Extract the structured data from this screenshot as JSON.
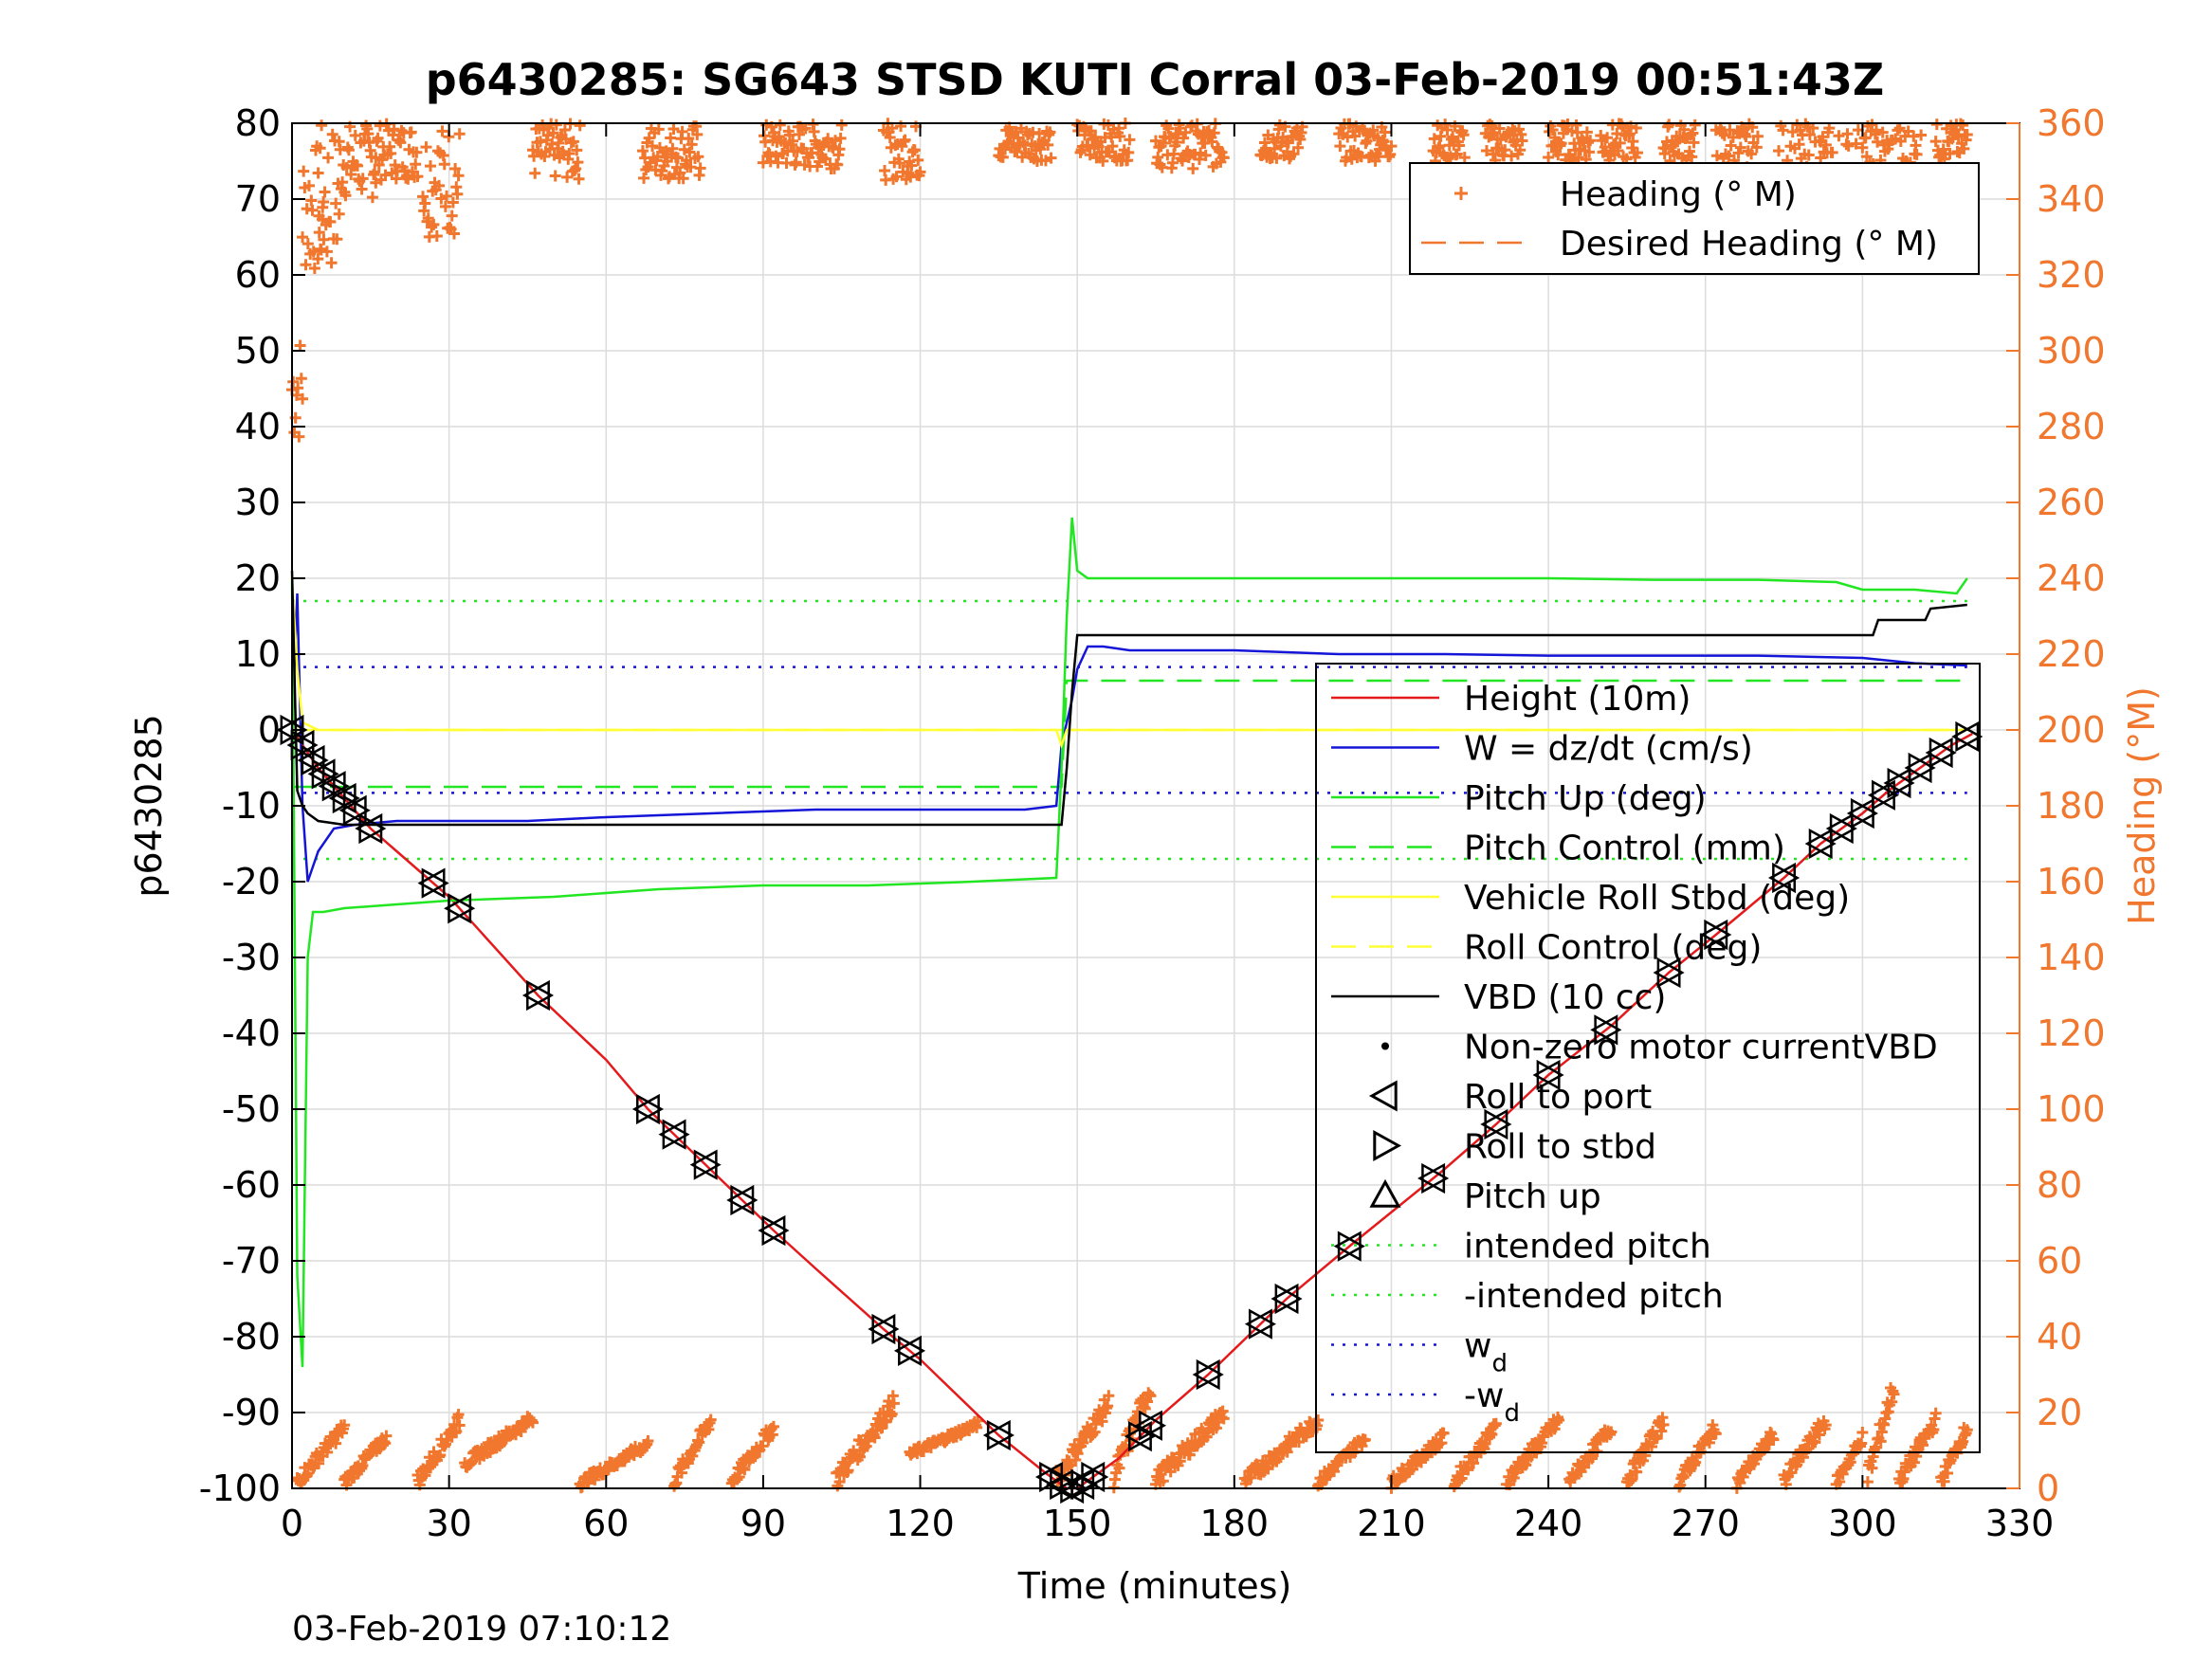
{
  "chart_data": {
    "type": "line",
    "title": "p6430285: SG643 STSD KUTI Corral 03-Feb-2019 00:51:43Z",
    "xlabel": "Time (minutes)",
    "ylabel": "p6430285",
    "ylabel_right": "Heading (°M)",
    "timestamp": "03-Feb-2019 07:10:12",
    "xlim": [
      0,
      330
    ],
    "ylim": [
      -100,
      80
    ],
    "ylim_right": [
      0,
      360
    ],
    "x_ticks": [
      "0",
      "30",
      "60",
      "90",
      "120",
      "150",
      "180",
      "210",
      "240",
      "270",
      "300",
      "330"
    ],
    "y_ticks": [
      "80",
      "70",
      "60",
      "50",
      "40",
      "30",
      "20",
      "10",
      "0",
      "-10",
      "-20",
      "-30",
      "-40",
      "-50",
      "-60",
      "-70",
      "-80",
      "-90",
      "-100"
    ],
    "y_ticks_right": [
      "360",
      "340",
      "320",
      "300",
      "280",
      "260",
      "240",
      "220",
      "200",
      "180",
      "160",
      "140",
      "120",
      "100",
      "80",
      "60",
      "40",
      "20",
      "0"
    ],
    "grid": true,
    "legend_heading": {
      "placement": "top-right",
      "entries": [
        "Heading (° M)",
        "Desired Heading (° M)"
      ]
    },
    "legend_main": {
      "placement": "right",
      "entries": [
        {
          "label": "Height (10m)",
          "style": "solid",
          "color": "#e41a1c",
          "marker": ""
        },
        {
          "label": "W = dz/dt (cm/s)",
          "style": "solid",
          "color": "#1515d8",
          "marker": ""
        },
        {
          "label": "Pitch Up (deg)",
          "style": "solid",
          "color": "#22e622",
          "marker": ""
        },
        {
          "label": "Pitch Control (mm)",
          "style": "dashed",
          "color": "#22e622",
          "marker": ""
        },
        {
          "label": "Vehicle Roll Stbd (deg)",
          "style": "solid",
          "color": "#ffff33",
          "marker": ""
        },
        {
          "label": "Roll Control (deg)",
          "style": "dashed",
          "color": "#ffff33",
          "marker": ""
        },
        {
          "label": "VBD (10 cc)",
          "style": "solid",
          "color": "#000000",
          "marker": ""
        },
        {
          "label": "Non-zero motor currentVBD",
          "style": "none",
          "color": "#000000",
          "marker": "dot"
        },
        {
          "label": "Roll to port",
          "style": "none",
          "color": "#000000",
          "marker": "tri-left"
        },
        {
          "label": "Roll to stbd",
          "style": "none",
          "color": "#000000",
          "marker": "tri-right"
        },
        {
          "label": "Pitch up",
          "style": "none",
          "color": "#000000",
          "marker": "tri-up"
        },
        {
          "label": "intended pitch",
          "style": "dotted",
          "color": "#22e622",
          "marker": ""
        },
        {
          "label": "-intended pitch",
          "style": "dotted",
          "color": "#22e622",
          "marker": ""
        },
        {
          "label": "w",
          "sub": "d",
          "style": "dotted",
          "color": "#1515d8",
          "marker": ""
        },
        {
          "label": "-w",
          "sub": "d",
          "style": "dotted",
          "color": "#1515d8",
          "marker": ""
        }
      ]
    },
    "colors": {
      "height": "#e41a1c",
      "w": "#1515d8",
      "pitch": "#22e622",
      "roll": "#ffff33",
      "vbd": "#000000",
      "heading": "#f0772d"
    },
    "series": [
      {
        "name": "Height (10m)",
        "x": [
          0,
          2,
          5,
          10,
          15,
          20,
          30,
          47,
          60,
          68,
          74,
          80,
          86,
          92,
          100,
          113,
          120,
          135,
          144,
          148,
          150,
          153,
          158,
          165,
          175,
          190,
          203,
          220,
          230,
          240,
          252,
          263,
          272,
          285,
          292,
          300,
          305,
          311,
          317,
          321
        ],
        "y": [
          0,
          -2,
          -5,
          -9,
          -13,
          -16,
          -22,
          -35,
          -43.5,
          -50,
          -54,
          -58,
          -62,
          -66,
          -71,
          -79,
          -83,
          -93,
          -98,
          -100,
          -100,
          -98.5,
          -96,
          -91,
          -85,
          -75,
          -67.5,
          -58,
          -52,
          -45.5,
          -39,
          -32,
          -27,
          -19.5,
          -15,
          -11,
          -8,
          -5,
          -2,
          -0.5
        ]
      },
      {
        "name": "W = dz/dt (cm/s)",
        "x": [
          0,
          1,
          2,
          3,
          5,
          8,
          12,
          20,
          30,
          45,
          60,
          80,
          100,
          120,
          140,
          146,
          147,
          149,
          150,
          152,
          155,
          160,
          180,
          200,
          220,
          240,
          260,
          280,
          300,
          310,
          320
        ],
        "y": [
          0,
          18,
          -10,
          -20,
          -16,
          -13,
          -12.5,
          -12,
          -12,
          -12,
          -11.5,
          -11,
          -10.5,
          -10.5,
          -10.5,
          -10,
          -2,
          4,
          8,
          11,
          11,
          10.5,
          10.5,
          10,
          10,
          9.8,
          9.8,
          9.8,
          9.5,
          8.8,
          8.5
        ]
      },
      {
        "name": "Pitch Up (deg)",
        "x": [
          0,
          1,
          2,
          3,
          4,
          6,
          10,
          20,
          30,
          50,
          70,
          90,
          110,
          130,
          146,
          147,
          148,
          149,
          150,
          152,
          160,
          180,
          200,
          220,
          240,
          260,
          280,
          295,
          300,
          310,
          318,
          320
        ],
        "y": [
          20,
          -72,
          -84,
          -30,
          -24,
          -24,
          -23.5,
          -23,
          -22.5,
          -22,
          -21,
          -20.5,
          -20.5,
          -20,
          -19.5,
          -5,
          15,
          28,
          21,
          20,
          20,
          20,
          20,
          20,
          20,
          19.8,
          19.8,
          19.5,
          18.5,
          18.5,
          18,
          20
        ]
      },
      {
        "name": "Pitch Control (mm)",
        "x": [
          0,
          147,
          148,
          320
        ],
        "y": [
          -7.5,
          -7.5,
          6.5,
          6.5
        ]
      },
      {
        "name": "Vehicle Roll Stbd (deg)",
        "x": [
          0,
          1,
          2,
          5,
          10,
          20,
          50,
          100,
          140,
          146,
          147,
          148,
          150,
          200,
          250,
          300,
          320
        ],
        "y": [
          20,
          8,
          1,
          0,
          0,
          0,
          0,
          0,
          0,
          0,
          -2,
          0,
          0,
          0,
          0,
          0,
          0
        ]
      },
      {
        "name": "Roll Control (deg)",
        "x": [
          0,
          320
        ],
        "y": [
          0,
          0
        ]
      },
      {
        "name": "VBD (10 cc)",
        "x": [
          0,
          1,
          2,
          3,
          5,
          10,
          146,
          147,
          148,
          149,
          150,
          200,
          210,
          300,
          302,
          303,
          312,
          313,
          320
        ],
        "y": [
          21,
          -8,
          -10,
          -11,
          -12,
          -12.5,
          -12.5,
          -12.5,
          -5,
          5,
          12.5,
          12.5,
          12.5,
          12.5,
          12.5,
          14.5,
          14.5,
          16,
          16.5
        ]
      },
      {
        "name": "intended pitch",
        "x": [
          0,
          320
        ],
        "y": [
          17,
          17
        ]
      },
      {
        "name": "-intended pitch",
        "x": [
          0,
          320
        ],
        "y": [
          -17,
          -17
        ]
      },
      {
        "name": "w_d",
        "x": [
          0,
          320
        ],
        "y": [
          8.3,
          8.3
        ]
      },
      {
        "name": "-w_d",
        "x": [
          0,
          320
        ],
        "y": [
          -8.3,
          -8.3
        ]
      }
    ],
    "markers_triangles_x": [
      0,
      2,
      4,
      6,
      8,
      10,
      12,
      15,
      27,
      32,
      47,
      68,
      73,
      79,
      86,
      92,
      113,
      118,
      135,
      145,
      147,
      149,
      151,
      153,
      162,
      164,
      175,
      185,
      190,
      202,
      218,
      230,
      240,
      251,
      263,
      272,
      285,
      292,
      296,
      300,
      304,
      307,
      311,
      315,
      320
    ],
    "heading_bursts": [
      {
        "x0": 0.0,
        "x1": 2.0,
        "low": 275,
        "high": 305,
        "band": "top"
      },
      {
        "x0": 2.0,
        "x1": 6.0,
        "low": 320,
        "high": 355,
        "band": "top"
      },
      {
        "x0": 5.0,
        "x1": 9.0,
        "low": 320,
        "high": 360,
        "band": "top"
      },
      {
        "x0": 9.0,
        "x1": 16.0,
        "low": 340,
        "high": 360,
        "band": "top"
      },
      {
        "x0": 16.0,
        "x1": 24.0,
        "low": 345,
        "high": 360,
        "band": "top"
      },
      {
        "x0": 25.0,
        "x1": 32.0,
        "low": 330,
        "high": 360,
        "band": "top"
      },
      {
        "x0": 46.0,
        "x1": 55.0,
        "low": 345,
        "high": 360,
        "band": "top"
      },
      {
        "x0": 67.0,
        "x1": 78.0,
        "low": 345,
        "high": 360,
        "band": "top"
      },
      {
        "x0": 90.0,
        "x1": 105.0,
        "low": 348,
        "high": 360,
        "band": "top"
      },
      {
        "x0": 113.0,
        "x1": 120.0,
        "low": 345,
        "high": 360,
        "band": "top"
      },
      {
        "x0": 135.0,
        "x1": 145.0,
        "low": 350,
        "high": 360,
        "band": "top"
      },
      {
        "x0": 150.0,
        "x1": 160.0,
        "low": 350,
        "high": 360,
        "band": "top"
      },
      {
        "x0": 165.0,
        "x1": 178.0,
        "low": 348,
        "high": 360,
        "band": "top"
      },
      {
        "x0": 185.0,
        "x1": 193.0,
        "low": 350,
        "high": 360,
        "band": "top"
      },
      {
        "x0": 200.0,
        "x1": 210.0,
        "low": 350,
        "high": 360,
        "band": "top"
      },
      {
        "x0": 218.0,
        "x1": 224.0,
        "low": 350,
        "high": 360,
        "band": "top"
      },
      {
        "x0": 228.0,
        "x1": 235.0,
        "low": 350,
        "high": 360,
        "band": "top"
      },
      {
        "x0": 240.0,
        "x1": 248.0,
        "low": 350,
        "high": 360,
        "band": "top"
      },
      {
        "x0": 250.0,
        "x1": 257.0,
        "low": 350,
        "high": 360,
        "band": "top"
      },
      {
        "x0": 262.0,
        "x1": 268.0,
        "low": 350,
        "high": 360,
        "band": "top"
      },
      {
        "x0": 272.0,
        "x1": 280.0,
        "low": 345,
        "high": 360,
        "band": "top"
      },
      {
        "x0": 284.0,
        "x1": 292.0,
        "low": 340,
        "high": 360,
        "band": "top"
      },
      {
        "x0": 292.0,
        "x1": 300.0,
        "low": 330,
        "high": 360,
        "band": "top"
      },
      {
        "x0": 300.0,
        "x1": 312.0,
        "low": 340,
        "high": 360,
        "band": "top"
      },
      {
        "x0": 314.0,
        "x1": 320.0,
        "low": 350,
        "high": 360,
        "band": "top"
      },
      {
        "x0": 1.0,
        "x1": 10.0,
        "low": 0,
        "high": 18,
        "band": "bottom"
      },
      {
        "x0": 10.0,
        "x1": 18.0,
        "low": 0,
        "high": 15,
        "band": "bottom"
      },
      {
        "x0": 24.0,
        "x1": 32.0,
        "low": 0,
        "high": 20,
        "band": "bottom"
      },
      {
        "x0": 33.0,
        "x1": 46.0,
        "low": 5,
        "high": 20,
        "band": "bottom"
      },
      {
        "x0": 55.0,
        "x1": 68.0,
        "low": 0,
        "high": 13,
        "band": "bottom"
      },
      {
        "x0": 73.0,
        "x1": 80.0,
        "low": 0,
        "high": 20,
        "band": "bottom"
      },
      {
        "x0": 84.0,
        "x1": 92.0,
        "low": 0,
        "high": 18,
        "band": "bottom"
      },
      {
        "x0": 104.0,
        "x1": 115.0,
        "low": 0,
        "high": 25,
        "band": "bottom"
      },
      {
        "x0": 118.0,
        "x1": 131.0,
        "low": 8,
        "high": 18,
        "band": "bottom"
      },
      {
        "x0": 146.0,
        "x1": 156.0,
        "low": 0,
        "high": 25,
        "band": "bottom"
      },
      {
        "x0": 157.0,
        "x1": 164.0,
        "low": 0,
        "high": 30,
        "band": "bottom"
      },
      {
        "x0": 165.0,
        "x1": 178.0,
        "low": 0,
        "high": 22,
        "band": "bottom"
      },
      {
        "x0": 182.0,
        "x1": 196.0,
        "low": 0,
        "high": 20,
        "band": "bottom"
      },
      {
        "x0": 196.0,
        "x1": 205.0,
        "low": 0,
        "high": 15,
        "band": "bottom"
      },
      {
        "x0": 210.0,
        "x1": 220.0,
        "low": 0,
        "high": 15,
        "band": "bottom"
      },
      {
        "x0": 222.0,
        "x1": 230.0,
        "low": 0,
        "high": 18,
        "band": "bottom"
      },
      {
        "x0": 232.0,
        "x1": 242.0,
        "low": 0,
        "high": 20,
        "band": "bottom"
      },
      {
        "x0": 244.0,
        "x1": 252.0,
        "low": 0,
        "high": 18,
        "band": "bottom"
      },
      {
        "x0": 255.0,
        "x1": 262.0,
        "low": 0,
        "high": 20,
        "band": "bottom"
      },
      {
        "x0": 265.0,
        "x1": 272.0,
        "low": 0,
        "high": 18,
        "band": "bottom"
      },
      {
        "x0": 276.0,
        "x1": 283.0,
        "low": 0,
        "high": 16,
        "band": "bottom"
      },
      {
        "x0": 285.0,
        "x1": 293.0,
        "low": 0,
        "high": 20,
        "band": "bottom"
      },
      {
        "x0": 295.0,
        "x1": 300.0,
        "low": 0,
        "high": 15,
        "band": "bottom"
      },
      {
        "x0": 301.0,
        "x1": 306.0,
        "low": 0,
        "high": 30,
        "band": "bottom"
      },
      {
        "x0": 307.0,
        "x1": 314.0,
        "low": 0,
        "high": 20,
        "band": "bottom"
      },
      {
        "x0": 315.0,
        "x1": 320.0,
        "low": 0,
        "high": 18,
        "band": "bottom"
      }
    ]
  }
}
